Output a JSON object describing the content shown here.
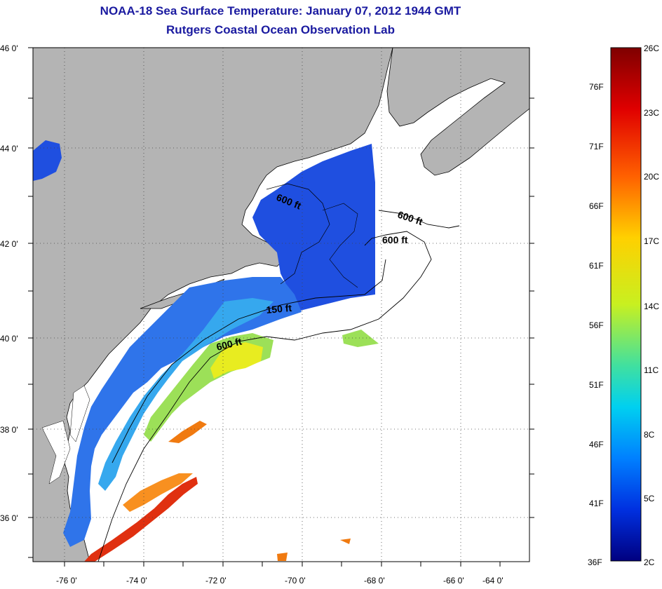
{
  "title": "NOAA-18 Sea Surface Temperature:  January 07, 2012 1944 GMT",
  "subtitle": "Rutgers Coastal Ocean Observation Lab",
  "map": {
    "lat_labels": [
      "46 0'",
      "44 0'",
      "42 0'",
      "40 0'",
      "38 0'",
      "36 0'"
    ],
    "lon_labels": [
      "-76 0'",
      "-74 0'",
      "-72 0'",
      "-70 0'",
      "-68 0'",
      "-66 0'",
      "-64 0'"
    ],
    "contour_labels": [
      "600 ft",
      "600 ft",
      "600 ft",
      "150 ft",
      "600 ft"
    ],
    "land_color": "#b4b4b4",
    "ocean_nodata_color": "#ffffff"
  },
  "colorbar": {
    "celsius_labels": [
      "26C",
      "23C",
      "20C",
      "17C",
      "14C",
      "11C",
      "8C",
      "5C",
      "2C"
    ],
    "fahrenheit_labels": [
      "76F",
      "71F",
      "66F",
      "61F",
      "56F",
      "51F",
      "46F",
      "41F",
      "36F"
    ],
    "colors": [
      "#7f0000",
      "#e00000",
      "#ff6000",
      "#ffd000",
      "#c8f020",
      "#40e0a0",
      "#00b0ff",
      "#0050f0",
      "#0000a0"
    ]
  }
}
